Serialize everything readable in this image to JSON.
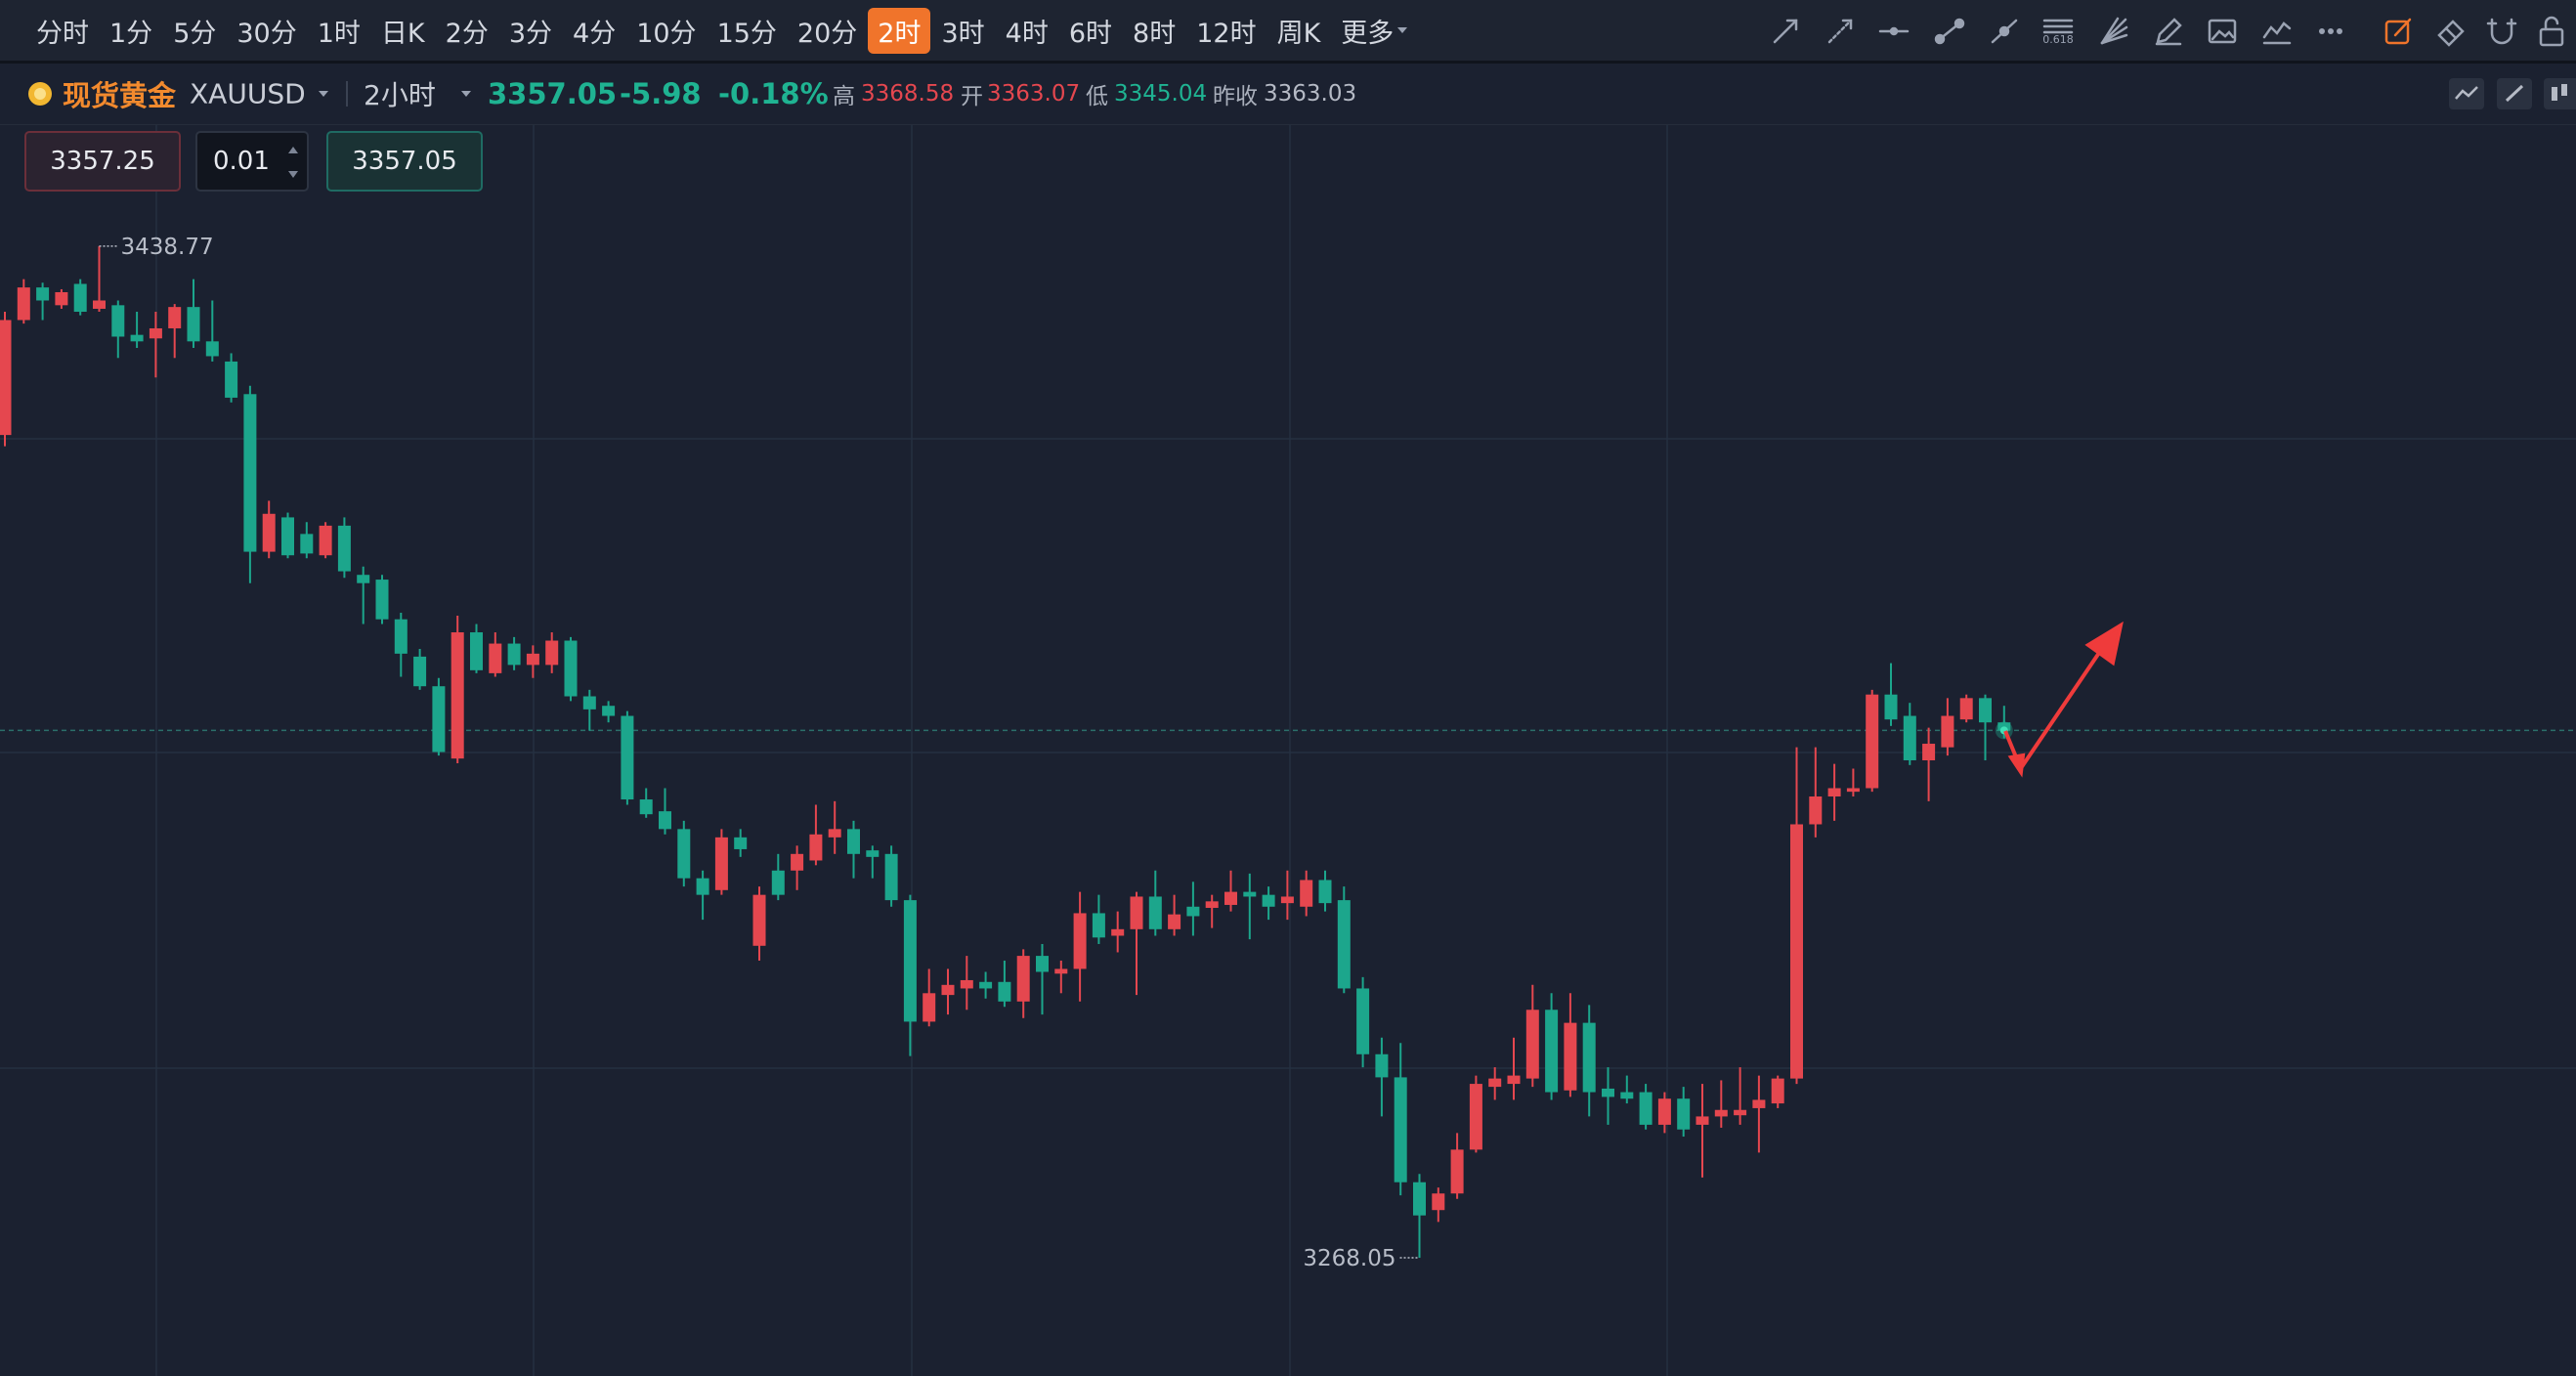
{
  "toolbar": {
    "intervals": [
      "分时",
      "1分",
      "5分",
      "30分",
      "1时",
      "日K",
      "2分",
      "3分",
      "4分",
      "10分",
      "15分",
      "20分",
      "2时",
      "3时",
      "4时",
      "6时",
      "8时",
      "12时",
      "周K",
      "更多"
    ],
    "selected": "2时",
    "fib_icon_label": "0.618"
  },
  "quote": {
    "name": "现货黄金",
    "symbol": "XAUUSD",
    "period": "2小时",
    "price": "3357.05",
    "change": "-5.98",
    "change_percent": "-0.18%",
    "high_label": "高",
    "high": "3368.58",
    "open_label": "开",
    "open": "3363.07",
    "low_label": "低",
    "low": "3345.04",
    "prev_close_label": "昨收",
    "prev_close": "3363.03"
  },
  "order": {
    "sell": "3357.25",
    "lots": "0.01",
    "buy": "3357.05"
  },
  "chart_data": {
    "type": "candlestick",
    "open": [
      3406.9,
      3426.3,
      3431.8,
      3428.8,
      3432.4,
      3428.2,
      3428.8,
      3423.8,
      3423.2,
      3424.9,
      3428.5,
      3422.7,
      3419.3,
      3413.8,
      3387.2,
      3393.0,
      3390.2,
      3386.6,
      3391.6,
      3383.3,
      3382.5,
      3375.8,
      3369.5,
      3364.5,
      3352.3,
      3373.6,
      3366.7,
      3371.7,
      3368.1,
      3368.1,
      3372.2,
      3362.8,
      3361.2,
      3359.5,
      3345.4,
      3343.4,
      3340.4,
      3332.1,
      3330.1,
      3339.0,
      3320.7,
      3333.4,
      3333.4,
      3335.1,
      3339.0,
      3340.4,
      3336.8,
      3336.2,
      3328.4,
      3307.9,
      3312.4,
      3313.5,
      3314.6,
      3314.6,
      3311.3,
      3319.0,
      3316.0,
      3316.8,
      3326.2,
      3322.4,
      3323.5,
      3329.0,
      3323.5,
      3327.3,
      3327.1,
      3327.6,
      3329.8,
      3329.3,
      3327.9,
      3327.3,
      3331.8,
      3328.4,
      3313.5,
      3302.4,
      3298.5,
      3280.8,
      3276.1,
      3278.9,
      3286.3,
      3296.9,
      3297.4,
      3298.3,
      3309.9,
      3296.3,
      3307.7,
      3296.6,
      3296.0,
      3296.0,
      3290.5,
      3294.9,
      3290.5,
      3291.9,
      3292.1,
      3293.3,
      3294.1,
      3298.3,
      3341.2,
      3345.9,
      3346.7,
      3347.3,
      3363.1,
      3359.5,
      3352.0,
      3354.2,
      3358.9,
      3362.5,
      3358.4
    ],
    "high": [
      3427.7,
      3433.2,
      3432.6,
      3431.5,
      3433.2,
      3438.77,
      3429.6,
      3427.7,
      3427.7,
      3429.0,
      3433.2,
      3429.6,
      3420.7,
      3415.2,
      3395.8,
      3393.8,
      3392.2,
      3392.2,
      3393.0,
      3384.7,
      3383.3,
      3376.9,
      3370.8,
      3365.9,
      3376.4,
      3375.0,
      3373.6,
      3372.8,
      3371.4,
      3373.6,
      3372.8,
      3363.9,
      3362.0,
      3360.3,
      3347.3,
      3347.3,
      3341.8,
      3333.4,
      3340.4,
      3340.4,
      3330.7,
      3336.2,
      3337.6,
      3344.5,
      3345.1,
      3341.8,
      3337.6,
      3337.6,
      3329.3,
      3316.8,
      3316.8,
      3319.0,
      3316.3,
      3318.2,
      3320.1,
      3321.0,
      3318.2,
      3329.8,
      3329.3,
      3326.5,
      3329.8,
      3333.4,
      3329.3,
      3331.5,
      3329.3,
      3333.4,
      3332.9,
      3330.7,
      3333.4,
      3333.4,
      3333.4,
      3330.7,
      3315.4,
      3305.2,
      3304.3,
      3282.2,
      3279.9,
      3289.1,
      3298.8,
      3300.2,
      3305.2,
      3314.1,
      3312.7,
      3312.7,
      3310.7,
      3300.2,
      3298.8,
      3297.4,
      3296.0,
      3296.9,
      3297.4,
      3298.0,
      3300.2,
      3298.8,
      3298.8,
      3354.2,
      3354.2,
      3351.4,
      3350.6,
      3363.9,
      3368.4,
      3361.7,
      3357.5,
      3362.5,
      3363.1,
      3363.1,
      3361.2
    ],
    "low": [
      3405.0,
      3425.7,
      3426.3,
      3428.2,
      3427.1,
      3427.7,
      3419.9,
      3421.6,
      3416.6,
      3419.9,
      3421.6,
      3419.3,
      3412.4,
      3381.9,
      3386.1,
      3386.1,
      3386.1,
      3386.1,
      3382.8,
      3375.0,
      3375.0,
      3366.1,
      3363.9,
      3352.8,
      3351.5,
      3366.7,
      3366.1,
      3367.2,
      3365.9,
      3366.7,
      3362.0,
      3357.0,
      3358.4,
      3344.5,
      3342.3,
      3339.5,
      3330.7,
      3325.1,
      3329.3,
      3335.7,
      3318.2,
      3328.4,
      3330.1,
      3334.3,
      3336.2,
      3332.1,
      3332.1,
      3327.3,
      3302.1,
      3307.1,
      3309.1,
      3309.9,
      3311.8,
      3310.4,
      3308.5,
      3309.1,
      3312.7,
      3311.3,
      3321.0,
      3319.6,
      3312.4,
      3322.4,
      3322.4,
      3322.4,
      3323.7,
      3326.5,
      3321.8,
      3325.1,
      3325.1,
      3325.7,
      3326.5,
      3312.7,
      3300.2,
      3291.9,
      3278.6,
      3268.05,
      3274.1,
      3278.0,
      3285.8,
      3294.7,
      3294.7,
      3296.9,
      3294.7,
      3295.2,
      3291.9,
      3290.5,
      3294.1,
      3289.7,
      3289.1,
      3288.5,
      3281.6,
      3290.0,
      3290.5,
      3285.8,
      3293.3,
      3297.4,
      3339.0,
      3341.8,
      3345.9,
      3346.7,
      3357.8,
      3351.2,
      3345.1,
      3352.8,
      3358.4,
      3352.0,
      3355.7
    ],
    "close": [
      3426.3,
      3431.8,
      3429.6,
      3431.0,
      3427.7,
      3429.6,
      3423.5,
      3422.7,
      3424.9,
      3428.5,
      3422.7,
      3420.2,
      3413.2,
      3387.2,
      3393.6,
      3386.6,
      3386.9,
      3391.6,
      3383.9,
      3381.9,
      3375.8,
      3370.0,
      3364.5,
      3353.4,
      3373.6,
      3367.2,
      3371.7,
      3368.1,
      3370.0,
      3372.2,
      3362.8,
      3360.6,
      3359.5,
      3345.4,
      3342.9,
      3340.4,
      3332.1,
      3329.3,
      3339.0,
      3337.0,
      3329.3,
      3329.3,
      3336.2,
      3339.5,
      3340.4,
      3336.2,
      3335.7,
      3328.4,
      3307.9,
      3312.7,
      3314.1,
      3314.9,
      3313.5,
      3311.3,
      3319.0,
      3316.3,
      3316.8,
      3326.2,
      3322.1,
      3323.5,
      3329.0,
      3323.5,
      3326.0,
      3325.7,
      3328.2,
      3329.8,
      3329.0,
      3327.3,
      3329.0,
      3331.8,
      3327.9,
      3313.5,
      3302.4,
      3298.5,
      3280.8,
      3275.2,
      3278.9,
      3286.3,
      3297.4,
      3298.3,
      3298.8,
      3309.9,
      3296.0,
      3307.7,
      3296.0,
      3295.2,
      3294.9,
      3290.5,
      3294.9,
      3289.7,
      3291.9,
      3293.0,
      3293.0,
      3294.7,
      3298.3,
      3341.2,
      3345.9,
      3347.3,
      3347.3,
      3363.1,
      3358.9,
      3352.0,
      3354.8,
      3359.5,
      3362.5,
      3358.4,
      3357.05
    ],
    "ylim": [
      3248.1,
      3459.2
    ],
    "up_color": "#e5474f",
    "down_color": "#1ca68c",
    "max_marker": 3438.77,
    "min_marker": 3268.05
  }
}
